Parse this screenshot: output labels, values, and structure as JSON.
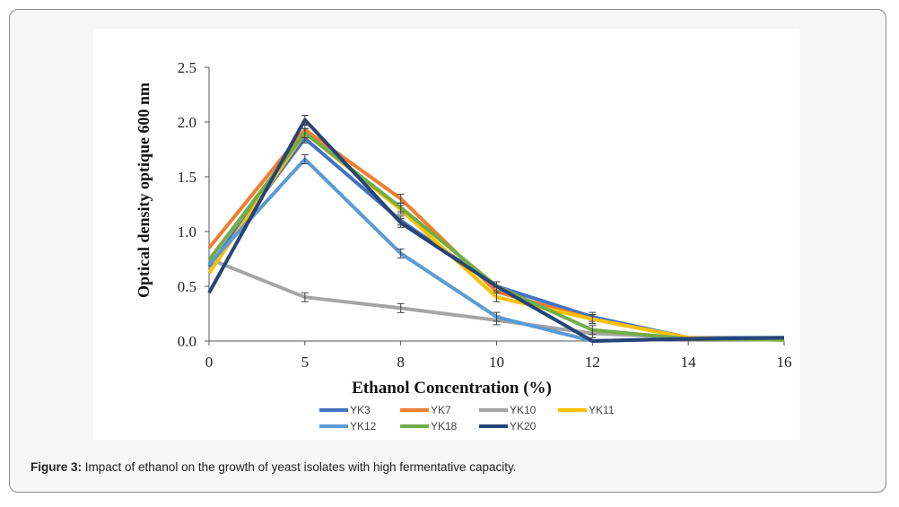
{
  "chart_data": {
    "type": "line",
    "xlabel": "Ethanol Concentration (%)",
    "ylabel": "Optical density optique 600 nm",
    "categories": [
      "0",
      "5",
      "8",
      "10",
      "12",
      "14",
      "16"
    ],
    "ylim": [
      0,
      2.5
    ],
    "yticks": [
      "0.0",
      "0.5",
      "1.0",
      "1.5",
      "2.0",
      "2.5"
    ],
    "grid": false,
    "legend_position": "bottom",
    "error_bars": true,
    "series": [
      {
        "name": "YK3",
        "color": "#4472C4",
        "values": [
          0.68,
          1.85,
          1.1,
          0.5,
          0.22,
          0.03,
          0.03
        ]
      },
      {
        "name": "YK7",
        "color": "#ED7D31",
        "values": [
          0.85,
          1.93,
          1.3,
          0.45,
          0.2,
          0.03,
          0.02
        ]
      },
      {
        "name": "YK10",
        "color": "#A5A5A5",
        "values": [
          0.75,
          0.4,
          0.3,
          0.19,
          0.07,
          0.03,
          0.02
        ]
      },
      {
        "name": "YK11",
        "color": "#FFC000",
        "values": [
          0.62,
          1.9,
          1.2,
          0.4,
          0.2,
          0.03,
          0.01
        ]
      },
      {
        "name": "YK12",
        "color": "#5B9BD5",
        "values": [
          0.7,
          1.66,
          0.8,
          0.22,
          0.0,
          0.02,
          0.03
        ]
      },
      {
        "name": "YK18",
        "color": "#70AD47",
        "values": [
          0.74,
          1.9,
          1.22,
          0.5,
          0.1,
          0.02,
          0.01
        ]
      },
      {
        "name": "YK20",
        "color": "#264478",
        "values": [
          0.44,
          2.02,
          1.08,
          0.5,
          0.0,
          0.02,
          0.03
        ]
      }
    ]
  },
  "caption": {
    "label": "Figure 3:",
    "text": " Impact of ethanol on the growth of yeast isolates with high fermentative capacity."
  }
}
